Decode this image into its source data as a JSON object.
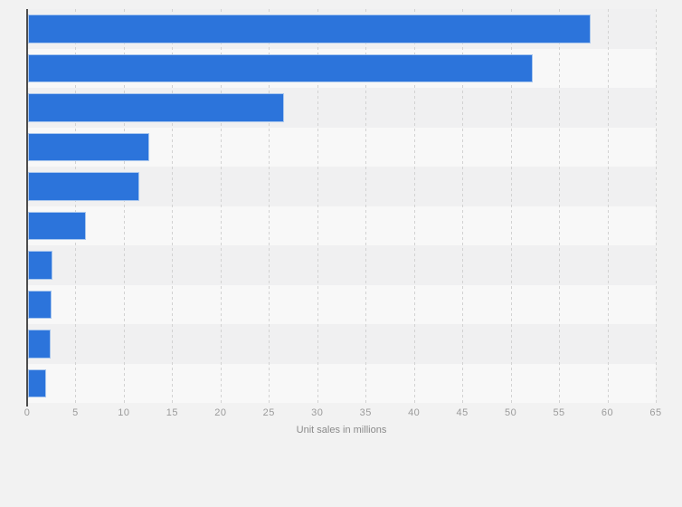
{
  "chart_data": {
    "type": "bar",
    "orientation": "horizontal",
    "title": "",
    "xlabel": "Unit sales in millions",
    "ylabel": "",
    "categories": [
      "",
      "",
      "",
      "",
      "",
      "",
      "",
      "",
      "",
      ""
    ],
    "values": [
      58.2,
      52.2,
      26.5,
      12.5,
      11.5,
      6.0,
      2.5,
      2.4,
      2.3,
      1.9
    ],
    "xlim": [
      0,
      65
    ],
    "xticks": [
      0,
      5,
      10,
      15,
      20,
      25,
      30,
      35,
      40,
      45,
      50,
      55,
      60,
      65
    ],
    "grid": "vertical-dotted",
    "legend": "none",
    "row_bands_alternating": true
  },
  "style": {
    "background": "#f2f2f2",
    "bar_fill": "#2c74db",
    "bar_border": "#a9c7ee",
    "axis_line": "#4d4d4d",
    "gridline": "#d2d2d2",
    "tick_label_color": "#9b9b9b",
    "axis_title_color": "#8a8a8a",
    "band_dark": "#f0f0f1",
    "band_light": "#f8f8f8"
  }
}
